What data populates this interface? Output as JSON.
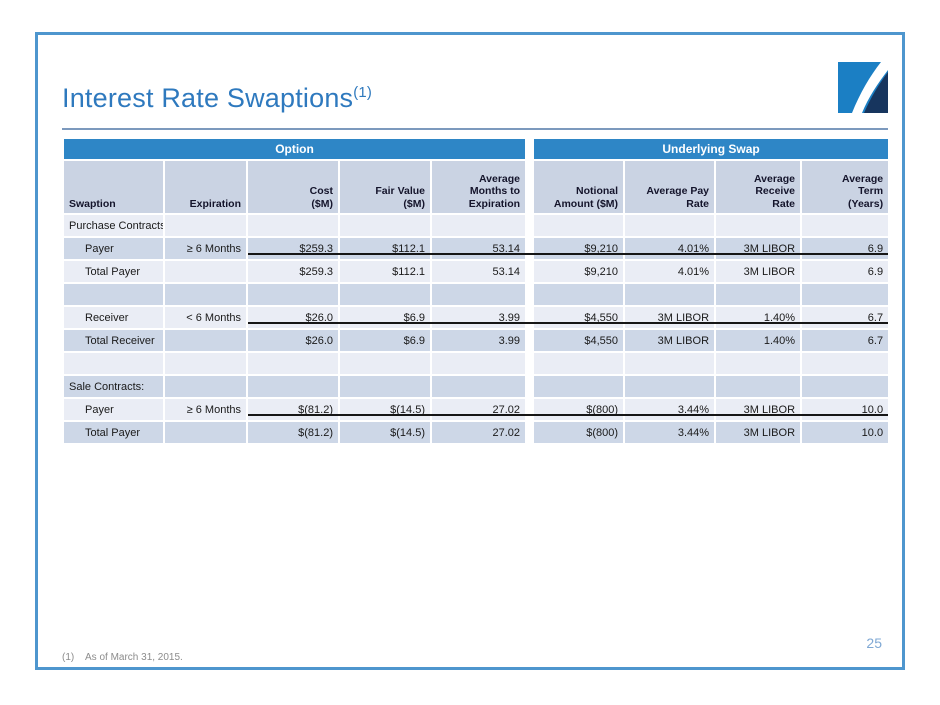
{
  "slide": {
    "title": "Interest Rate Swaptions",
    "title_superscript": "(1)",
    "footnote_marker": "(1)",
    "footnote_text": "As of March 31, 2015.",
    "page_number": "25"
  },
  "colors": {
    "title_blue": "#2E79BE",
    "group_header_bg": "#2E86C6",
    "column_header_bg": "#CAD3E3",
    "row_dark_bg": "#CDD7E7",
    "row_light_bg": "#EAEDF5",
    "slide_border_blue": "#4E96CE",
    "sum_line_black": "#161616",
    "logo_light_blue": "#1B7FC4",
    "logo_navy": "#17355E",
    "page_number_blue": "#7FA8D4"
  },
  "table": {
    "group_headers": [
      {
        "label": "Option"
      },
      {
        "label": "Underlying Swap"
      }
    ],
    "columns": [
      {
        "label": "Swaption"
      },
      {
        "label": "Expiration"
      },
      {
        "label": "Cost\n($M)"
      },
      {
        "label": "Fair Value\n($M)"
      },
      {
        "label": "Average\nMonths to\nExpiration"
      },
      {
        "label": "Notional\nAmount ($M)"
      },
      {
        "label": "Average Pay\nRate"
      },
      {
        "label": "Average\nReceive\nRate"
      },
      {
        "label": "Average\nTerm\n(Years)"
      }
    ],
    "rows": [
      {
        "shade": "light",
        "indent": false,
        "sumline": false,
        "cells": [
          "Purchase Contracts:",
          "",
          "",
          "",
          "",
          "",
          "",
          "",
          ""
        ]
      },
      {
        "shade": "dark",
        "indent": true,
        "sumline": true,
        "cells": [
          "Payer",
          "≥ 6 Months",
          "$259.3",
          "$112.1",
          "53.14",
          "$9,210",
          "4.01%",
          "3M LIBOR",
          "6.9"
        ]
      },
      {
        "shade": "light",
        "indent": true,
        "sumline": false,
        "cells": [
          "Total Payer",
          "",
          "$259.3",
          "$112.1",
          "53.14",
          "$9,210",
          "4.01%",
          "3M LIBOR",
          "6.9"
        ]
      },
      {
        "shade": "dark",
        "indent": false,
        "sumline": false,
        "cells": [
          "",
          "",
          "",
          "",
          "",
          "",
          "",
          "",
          ""
        ]
      },
      {
        "shade": "light",
        "indent": true,
        "sumline": true,
        "cells": [
          "Receiver",
          "< 6 Months",
          "$26.0",
          "$6.9",
          "3.99",
          "$4,550",
          "3M LIBOR",
          "1.40%",
          "6.7"
        ]
      },
      {
        "shade": "dark",
        "indent": true,
        "sumline": false,
        "cells": [
          "Total Receiver",
          "",
          "$26.0",
          "$6.9",
          "3.99",
          "$4,550",
          "3M LIBOR",
          "1.40%",
          "6.7"
        ]
      },
      {
        "shade": "light",
        "indent": false,
        "sumline": false,
        "cells": [
          "",
          "",
          "",
          "",
          "",
          "",
          "",
          "",
          ""
        ]
      },
      {
        "shade": "dark",
        "indent": false,
        "sumline": false,
        "cells": [
          "Sale Contracts:",
          "",
          "",
          "",
          "",
          "",
          "",
          "",
          ""
        ]
      },
      {
        "shade": "light",
        "indent": true,
        "sumline": true,
        "cells": [
          "Payer",
          "≥ 6 Months",
          "$(81.2)",
          "$(14.5)",
          "27.02",
          "$(800)",
          "3.44%",
          "3M LIBOR",
          "10.0"
        ]
      },
      {
        "shade": "dark",
        "indent": true,
        "sumline": false,
        "cells": [
          "Total Payer",
          "",
          "$(81.2)",
          "$(14.5)",
          "27.02",
          "$(800)",
          "3.44%",
          "3M LIBOR",
          "10.0"
        ]
      }
    ]
  }
}
